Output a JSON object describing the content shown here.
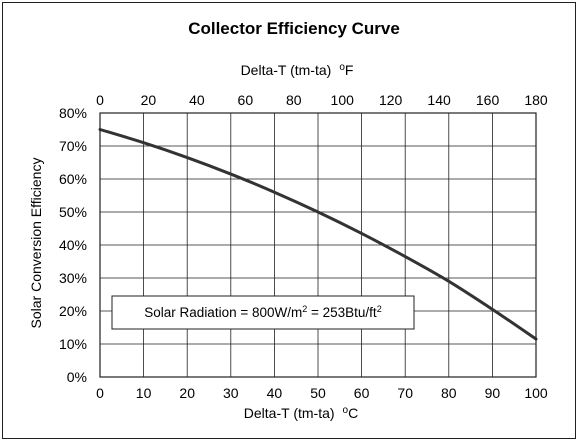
{
  "chart_data": {
    "type": "line",
    "title": "Collector Efficiency Curve",
    "xlabel": "Delta-T (tm-ta)",
    "xlabel_unit_degree": "o",
    "xlabel_unit": "C",
    "x2label": "Delta-T (tm-ta)",
    "x2label_unit_degree": "o",
    "x2label_unit": "F",
    "ylabel": "Solar Conversion Efficiency",
    "xlim": [
      0,
      100
    ],
    "ylim": [
      0,
      80
    ],
    "x2lim": [
      0,
      180
    ],
    "x_ticks": [
      "0",
      "10",
      "20",
      "30",
      "40",
      "50",
      "60",
      "70",
      "80",
      "90",
      "100"
    ],
    "x2_ticks": [
      "0",
      "20",
      "40",
      "60",
      "80",
      "100",
      "120",
      "140",
      "160",
      "180"
    ],
    "y_ticks": [
      "0%",
      "10%",
      "20%",
      "30%",
      "40%",
      "50%",
      "60%",
      "70%",
      "80%"
    ],
    "grid": true,
    "annotation": {
      "prefix": "Solar Radiation = 800W/m",
      "sup1": "2",
      "middle": " = 253Btu/ft",
      "sup2": "2"
    },
    "series": [
      {
        "color": "#333333",
        "x": [
          0,
          10,
          20,
          30,
          40,
          50,
          60,
          70,
          80,
          90,
          100
        ],
        "y": [
          75,
          71,
          66.5,
          61.5,
          56,
          50,
          43.5,
          36.5,
          29,
          20.5,
          11.5
        ]
      }
    ]
  }
}
